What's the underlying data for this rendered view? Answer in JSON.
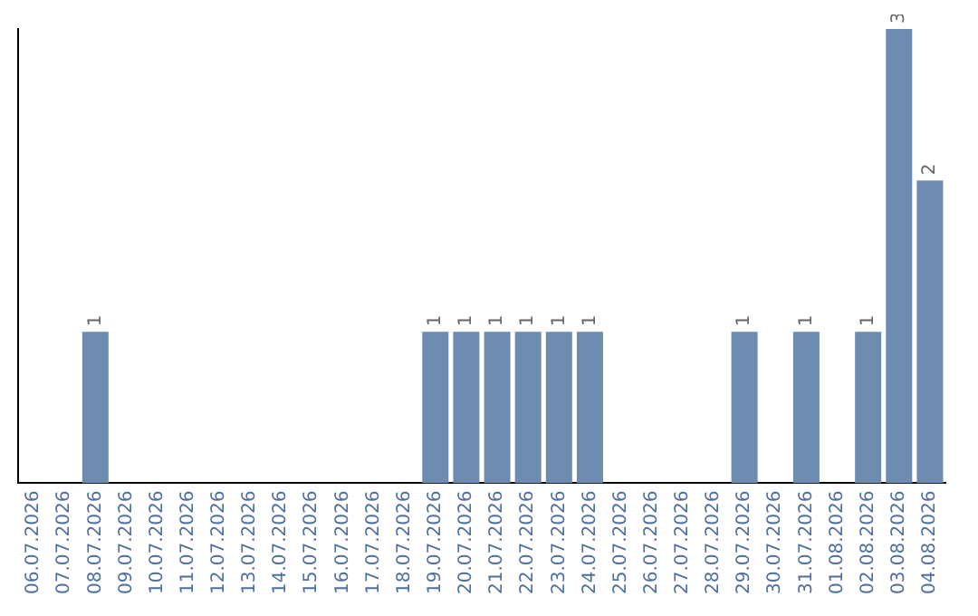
{
  "chart_data": {
    "type": "bar",
    "categories": [
      "06.07.2026",
      "07.07.2026",
      "08.07.2026",
      "09.07.2026",
      "10.07.2026",
      "11.07.2026",
      "12.07.2026",
      "13.07.2026",
      "14.07.2026",
      "15.07.2026",
      "16.07.2026",
      "17.07.2026",
      "18.07.2026",
      "19.07.2026",
      "20.07.2026",
      "21.07.2026",
      "22.07.2026",
      "23.07.2026",
      "24.07.2026",
      "25.07.2026",
      "26.07.2026",
      "27.07.2026",
      "28.07.2026",
      "29.07.2026",
      "30.07.2026",
      "31.07.2026",
      "01.08.2026",
      "02.08.2026",
      "03.08.2026",
      "04.08.2026"
    ],
    "values": [
      0,
      0,
      1,
      0,
      0,
      0,
      0,
      0,
      0,
      0,
      0,
      0,
      0,
      1,
      1,
      1,
      1,
      1,
      1,
      0,
      0,
      0,
      0,
      1,
      0,
      1,
      0,
      1,
      3,
      2
    ],
    "value_labels": [
      null,
      null,
      "1",
      null,
      null,
      null,
      null,
      null,
      null,
      null,
      null,
      null,
      null,
      "1",
      "1",
      "1",
      "1",
      "1",
      "1",
      null,
      null,
      null,
      null,
      "1",
      null,
      "1",
      null,
      "1",
      "3",
      "2"
    ],
    "color": "#6e8caf",
    "grid": false,
    "legend": false
  }
}
